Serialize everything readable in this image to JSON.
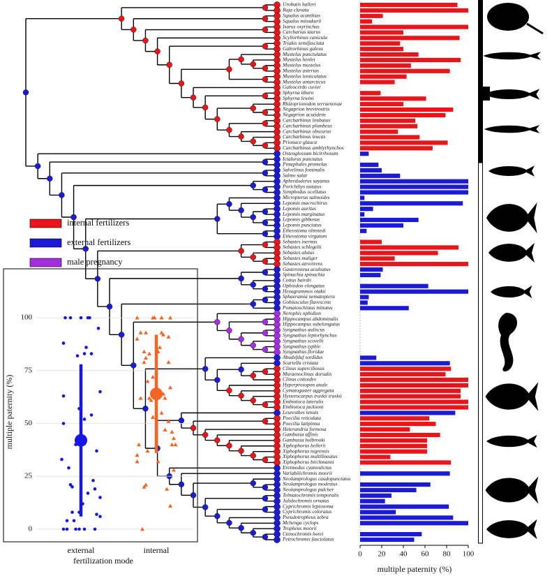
{
  "chart_data": [
    {
      "type": "bar",
      "orientation": "horizontal",
      "categories": [
        "Urobatis halleri",
        "Raja clavata",
        "Squalus acanthias",
        "Squalus mitsukurii",
        "Isurus oxyrinchus",
        "Carcharias taurus",
        "Scyliorhinus canicula",
        "Triakis semifasciata",
        "Galeorhinus galeus",
        "Mustelus punctulatus",
        "Mustelus henlei",
        "Mustelus mustelus",
        "Mustelus asterias",
        "Mustelus lenticulatus",
        "Mustelus antarcticus",
        "Galeocerdo cuvier",
        "Sphyrna tiburo",
        "Sphyrna lewini",
        "Rhizoprionodon terraenovae",
        "Negaprion brevirostris",
        "Negaprion acutidens",
        "Carcharhinus limbatus",
        "Carcharhinus plumbeus",
        "Carcharhinus obscurus",
        "Carcharhinus leucas",
        "Prionace glauca",
        "Carcharhinus amblyrhynchos",
        "Osteoglossum bicirrhosum",
        "Ictalurus punctatus",
        "Pimephales promelas",
        "Salvelinus fontinalis",
        "Salmo salar",
        "Aphredoderus sayanus",
        "Porichthys notatus",
        "Symphodus ocellatus",
        "Micropterus salmoides",
        "Lepomis macrochirus",
        "Lepomis auritus",
        "Lepomis marginatus",
        "Lepomis gibbosus",
        "Lepomis punctatus",
        "Etheostoma olmstedi",
        "Etheostoma virgatum",
        "Sebastes inermis",
        "Sebastes schlegelii",
        "Sebastes alutus",
        "Sebastes maliger",
        "Sebastes atrovirens",
        "Gasterosteus aculeatus",
        "Spinachia spinachia",
        "Cottus bairdii",
        "Ophiodon elongatus",
        "Hexagrammos otakii",
        "Sphaeramia nematoptera",
        "Gobiusculus flavescens",
        "Pomatoschistus minutus",
        "Nerophis ophidion",
        "Hippocampus abdominalis",
        "Hippocampus subelongatus",
        "Syngnathus auliscus",
        "Syngnathus leptorhynchus",
        "Syngnathus scovelli",
        "Syngnathus typhle",
        "Syngnathus floridae",
        "Abudefduf sordidus",
        "Scartella cristata",
        "Clinus superciliosus",
        "Muraenoclinus dorsalis",
        "Clinus cottoides",
        "Hyperprosopon anale",
        "Cymatogaster aggregata",
        "Hysterocarpus traskii traskii",
        "Embiotoca lateralis",
        "Embiotoca jacksoni",
        "Leuresthes tenuis",
        "Poecilia reticulata",
        "Poecilia latipinna",
        "Heterandria formosa",
        "Gambusia affinis",
        "Gambusia holbrooki",
        "Xiphophorus hellerii",
        "Xiphophorus nigrensis",
        "Xiphophorus multilineatus",
        "Xiphophorus birchmanni",
        "Eretmodus cyanostictus",
        "Variabilichromis moorii",
        "Neolamprologus caudopunctatus",
        "Neolamprologus modestus",
        "Neolamprologus pulcher",
        "Telmatochromis temporalis",
        "Julidochromis ornatus",
        "Cyprichromis leptosoma",
        "Cyprichromis coloratus",
        "Pseudotropheus zebra",
        "Mchenga cyclops",
        "Tropheus moorii",
        "Ctenochromis horei",
        "Petrochromis fasciolatus"
      ],
      "values": [
        90,
        100,
        21,
        11,
        100,
        40,
        92,
        37,
        40,
        54,
        93,
        47,
        83,
        43,
        32,
        0,
        19,
        61,
        40,
        86,
        79,
        51,
        53,
        35,
        55,
        81,
        67,
        8,
        0,
        17,
        20,
        37,
        100,
        100,
        100,
        4,
        95,
        12,
        4,
        54,
        40,
        6,
        0,
        20,
        91,
        72,
        32,
        100,
        21,
        19,
        0,
        63,
        100,
        8,
        7,
        45,
        0,
        0,
        0,
        0,
        0,
        0,
        0,
        0,
        15,
        83,
        84,
        79,
        100,
        100,
        93,
        93,
        100,
        100,
        88,
        64,
        70,
        46,
        74,
        62,
        62,
        62,
        28,
        84,
        0,
        83,
        0,
        65,
        52,
        29,
        23,
        82,
        33,
        86,
        100,
        0,
        57,
        50
      ],
      "colors": [
        "#e8161b",
        "#e8161b",
        "#e8161b",
        "#e8161b",
        "#e8161b",
        "#e8161b",
        "#e8161b",
        "#e8161b",
        "#e8161b",
        "#e8161b",
        "#e8161b",
        "#e8161b",
        "#e8161b",
        "#e8161b",
        "#e8161b",
        "#e8161b",
        "#e8161b",
        "#e8161b",
        "#e8161b",
        "#e8161b",
        "#e8161b",
        "#e8161b",
        "#e8161b",
        "#e8161b",
        "#e8161b",
        "#e8161b",
        "#e8161b",
        "#1b1bd6",
        "#1b1bd6",
        "#1b1bd6",
        "#1b1bd6",
        "#1b1bd6",
        "#1b1bd6",
        "#1b1bd6",
        "#1b1bd6",
        "#1b1bd6",
        "#1b1bd6",
        "#1b1bd6",
        "#1b1bd6",
        "#1b1bd6",
        "#1b1bd6",
        "#1b1bd6",
        "#1b1bd6",
        "#e8161b",
        "#e8161b",
        "#e8161b",
        "#e8161b",
        "#e8161b",
        "#1b1bd6",
        "#1b1bd6",
        "#1b1bd6",
        "#1b1bd6",
        "#1b1bd6",
        "#1b1bd6",
        "#1b1bd6",
        "#1b1bd6",
        "#a52ee0",
        "#a52ee0",
        "#a52ee0",
        "#a52ee0",
        "#a52ee0",
        "#a52ee0",
        "#a52ee0",
        "#a52ee0",
        "#1b1bd6",
        "#1b1bd6",
        "#e8161b",
        "#e8161b",
        "#e8161b",
        "#e8161b",
        "#e8161b",
        "#e8161b",
        "#e8161b",
        "#e8161b",
        "#1b1bd6",
        "#e8161b",
        "#e8161b",
        "#e8161b",
        "#e8161b",
        "#e8161b",
        "#e8161b",
        "#e8161b",
        "#e8161b",
        "#e8161b",
        "#1b1bd6",
        "#1b1bd6",
        "#1b1bd6",
        "#1b1bd6",
        "#1b1bd6",
        "#1b1bd6",
        "#1b1bd6",
        "#1b1bd6",
        "#1b1bd6",
        "#1b1bd6",
        "#1b1bd6",
        "#1b1bd6",
        "#1b1bd6",
        "#1b1bd6"
      ],
      "legend": [
        {
          "name": "internal fertilizers",
          "color": "#e8161b"
        },
        {
          "name": "external fertilizers",
          "color": "#1b1bd6"
        },
        {
          "name": "male pregnancy",
          "color": "#a52ee0"
        }
      ],
      "xlabel": "multiple paternity (%)",
      "xlim": [
        0,
        100
      ],
      "xticks": [
        0,
        20,
        40,
        60,
        80,
        100
      ]
    },
    {
      "type": "strip",
      "categories": [
        "external",
        "internal"
      ],
      "colors": [
        "#1515e6",
        "#f26522"
      ],
      "values": [
        42,
        64
      ],
      "ci": [
        [
          6,
          78
        ],
        [
          36,
          92
        ]
      ],
      "xlabel": "fertilization mode",
      "ylabel": "multiple paternity (%)",
      "ylim": [
        -5,
        105
      ],
      "yticks": [
        0,
        25,
        50,
        75,
        100
      ],
      "grid": true
    }
  ]
}
